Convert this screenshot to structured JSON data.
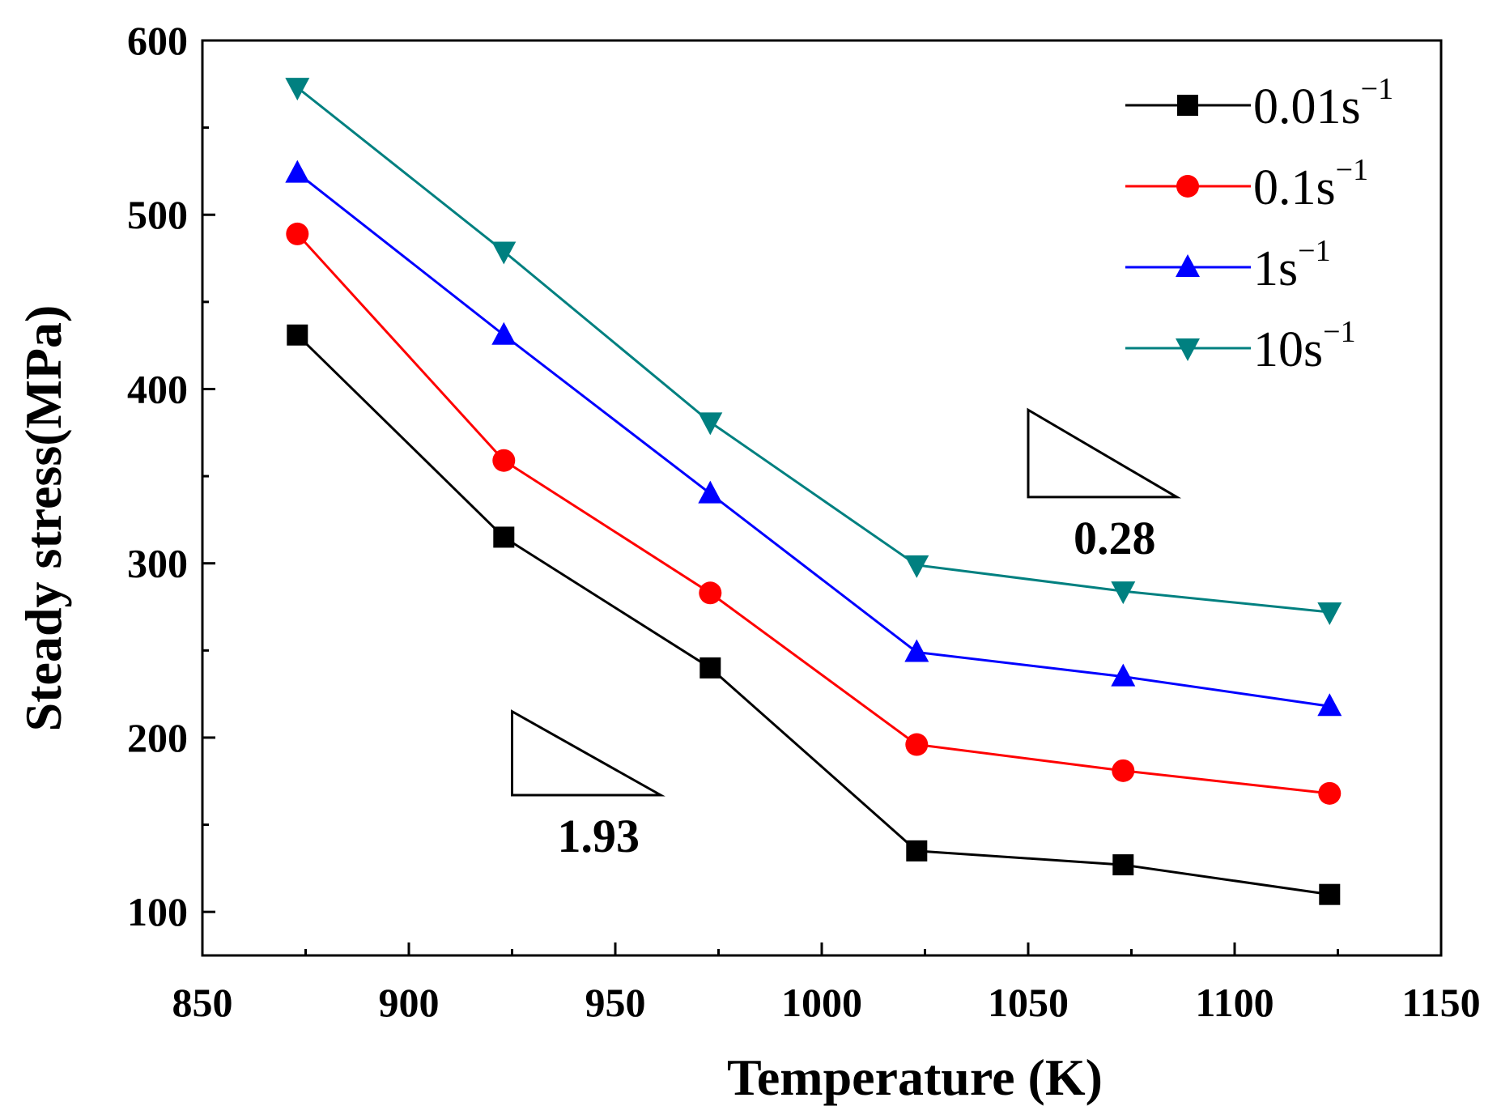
{
  "chart_data": {
    "type": "line",
    "title": "",
    "xlabel": "Temperature (K)",
    "ylabel": "Steady stress(MPa)",
    "xlim": [
      850,
      1150
    ],
    "ylim": [
      75,
      600
    ],
    "xticks": [
      850,
      900,
      950,
      1000,
      1050,
      1100,
      1150
    ],
    "yticks": [
      100,
      200,
      300,
      400,
      500,
      600
    ],
    "x": [
      873,
      923,
      973,
      1023,
      1073,
      1123
    ],
    "series": [
      {
        "name": "0.01s",
        "sup": "−1",
        "color": "#000000",
        "marker": "square",
        "values": [
          431,
          315,
          240,
          135,
          127,
          110
        ]
      },
      {
        "name": "0.1s",
        "sup": "−1",
        "color": "#ff0000",
        "marker": "circle",
        "values": [
          489,
          359,
          283,
          196,
          181,
          168
        ]
      },
      {
        "name": "1s",
        "sup": "−1",
        "color": "#0000ff",
        "marker": "triangle-up",
        "values": [
          524,
          431,
          340,
          249,
          235,
          218
        ]
      },
      {
        "name": "10s",
        "sup": "−1",
        "color": "#008080",
        "marker": "triangle-down",
        "values": [
          573,
          479,
          381,
          299,
          284,
          272
        ]
      }
    ],
    "legend_position": "top-right",
    "annotations": [
      {
        "text": "1.93",
        "triangle": {
          "x": [
            925,
            925,
            961
          ],
          "y": [
            215,
            167,
            167
          ]
        }
      },
      {
        "text": "0.28",
        "triangle": {
          "x": [
            1050,
            1050,
            1086
          ],
          "y": [
            388,
            338,
            338
          ]
        }
      }
    ]
  }
}
